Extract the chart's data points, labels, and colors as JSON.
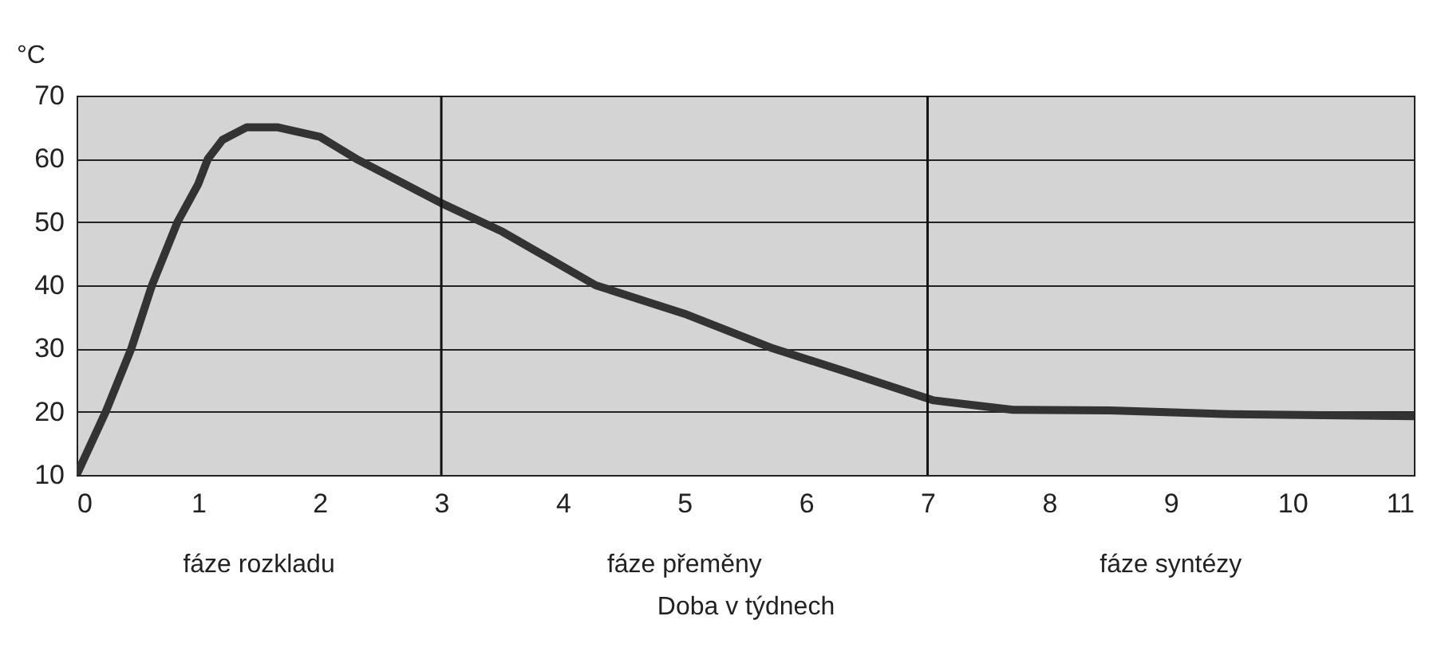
{
  "chart_data": {
    "type": "line",
    "ylabel": "°C",
    "xlabel": "Doba v týdnech",
    "x": [
      0,
      0.24,
      0.45,
      0.62,
      0.83,
      1.0,
      1.08,
      1.2,
      1.4,
      1.65,
      2.0,
      2.3,
      2.6,
      3.0,
      3.5,
      4.27,
      5.0,
      5.73,
      6.3,
      7.05,
      7.7,
      8.5,
      9.5,
      11
    ],
    "series": [
      {
        "color": "#333333",
        "values": [
          10,
          20,
          30,
          40,
          50,
          56,
          60,
          63,
          65,
          65,
          63.5,
          60,
          57,
          53,
          48.5,
          40,
          35.5,
          30,
          26.5,
          21.8,
          20.3,
          20.2,
          19.6,
          19.3
        ]
      }
    ],
    "xlim": [
      0,
      11
    ],
    "xticks": [
      0,
      1,
      2,
      3,
      4,
      5,
      6,
      7,
      8,
      9,
      10,
      11
    ],
    "ylim": [
      10,
      70
    ],
    "yticks": [
      10,
      20,
      30,
      40,
      50,
      60,
      70
    ],
    "grid": "y",
    "ref_lines": [
      {
        "axis": "x",
        "value": 3,
        "color": "#111111"
      },
      {
        "axis": "x",
        "value": 7,
        "color": "#111111"
      }
    ],
    "annotations": [
      "fáze rozkladu",
      "fáze přeměny",
      "fáze syntézy"
    ]
  }
}
